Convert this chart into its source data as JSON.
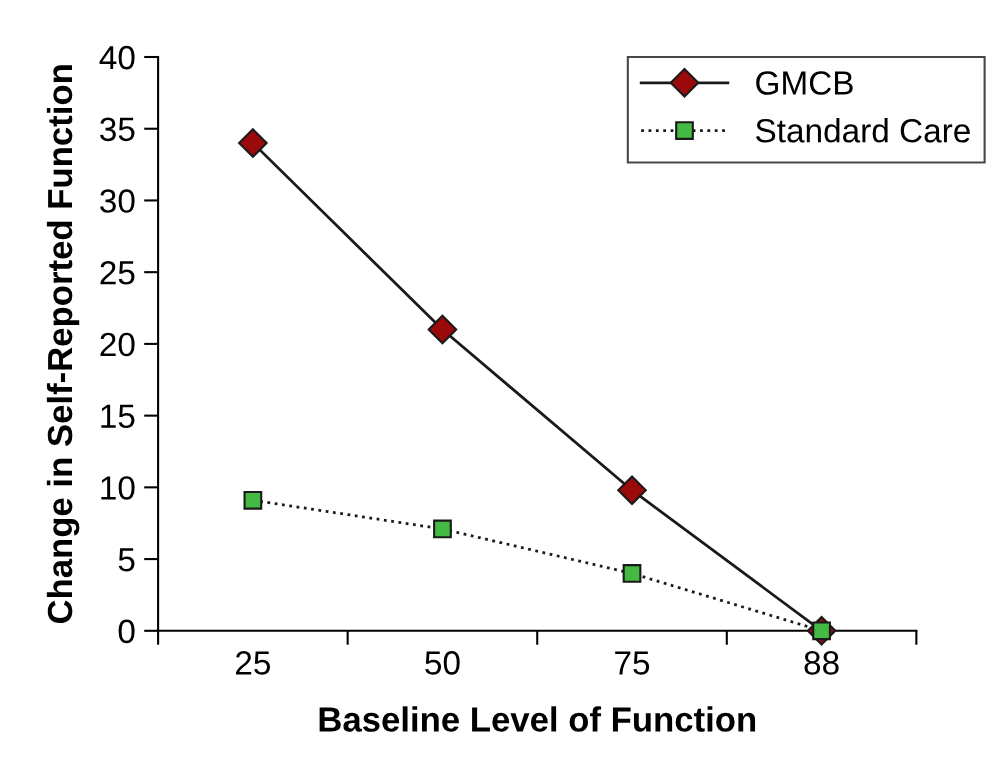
{
  "chart_data": {
    "type": "line",
    "xlabel": "Baseline Level of Function",
    "ylabel": "Change in Self-Reported Function",
    "categories": [
      "25",
      "50",
      "75",
      "88"
    ],
    "series": [
      {
        "name": "GMCB",
        "color": "#9b0a0a",
        "values": [
          34,
          21,
          9.8,
          0
        ],
        "marker": "diamond",
        "line_style": "solid"
      },
      {
        "name": "Standard Care",
        "color": "#44b944",
        "values": [
          9.1,
          7.1,
          4.0,
          0
        ],
        "marker": "square",
        "line_style": "dotted"
      }
    ],
    "ylim": [
      0,
      40
    ],
    "yticks": [
      0,
      5,
      10,
      15,
      20,
      25,
      30,
      35,
      40
    ],
    "grid": false,
    "legend": "top right"
  }
}
